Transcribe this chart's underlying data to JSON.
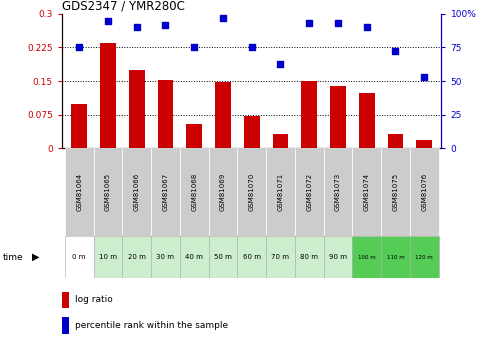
{
  "title": "GDS2347 / YMR280C",
  "samples": [
    "GSM81064",
    "GSM81065",
    "GSM81066",
    "GSM81067",
    "GSM81068",
    "GSM81069",
    "GSM81070",
    "GSM81071",
    "GSM81072",
    "GSM81073",
    "GSM81074",
    "GSM81075",
    "GSM81076"
  ],
  "time_labels": [
    "0 m",
    "10 m",
    "20 m",
    "30 m",
    "40 m",
    "50 m",
    "60 m",
    "70 m",
    "80 m",
    "90 m",
    "100 m",
    "110 m",
    "120 m"
  ],
  "log_ratio": [
    0.1,
    0.235,
    0.175,
    0.152,
    0.055,
    0.147,
    0.073,
    0.032,
    0.15,
    0.138,
    0.123,
    0.033,
    0.018
  ],
  "percentile_rank": [
    75,
    95,
    90,
    92,
    75,
    97,
    75,
    63,
    93,
    93,
    90,
    72,
    53
  ],
  "bar_color": "#cc0000",
  "dot_color": "#0000cc",
  "left_ylim": [
    0,
    0.3
  ],
  "right_ylim": [
    0,
    100
  ],
  "left_yticks": [
    0,
    0.075,
    0.15,
    0.225,
    0.3
  ],
  "right_yticks": [
    0,
    25,
    50,
    75,
    100
  ],
  "grid_values": [
    0.075,
    0.15,
    0.225
  ],
  "time_bg_colors": [
    "#ffffff",
    "#cceecc",
    "#cceecc",
    "#cceecc",
    "#cceecc",
    "#cceecc",
    "#cceecc",
    "#cceecc",
    "#cceecc",
    "#cceecc",
    "#55cc55",
    "#55cc55",
    "#55cc55"
  ],
  "legend_log_ratio_color": "#cc0000",
  "legend_percentile_color": "#0000cc",
  "bar_width": 0.55,
  "fig_width": 4.96,
  "fig_height": 3.45,
  "fig_dpi": 100
}
